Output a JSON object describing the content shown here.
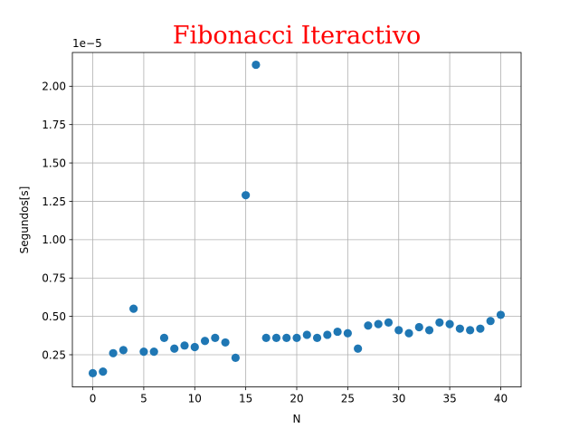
{
  "chart_data": {
    "type": "scatter",
    "title": "Fibonacci Iteractivo",
    "title_color": "#ff0000",
    "xlabel": "N",
    "ylabel": "Segundos[s]",
    "y_offset_label": "1e−5",
    "xlim": [
      -2,
      42
    ],
    "ylim": [
      0.04,
      2.22
    ],
    "x_ticks": [
      0,
      5,
      10,
      15,
      20,
      25,
      30,
      35,
      40
    ],
    "x_tick_labels": [
      "0",
      "5",
      "10",
      "15",
      "20",
      "25",
      "30",
      "35",
      "40"
    ],
    "y_ticks": [
      0.25,
      0.5,
      0.75,
      1.0,
      1.25,
      1.5,
      1.75,
      2.0
    ],
    "y_tick_labels": [
      "0.25",
      "0.50",
      "0.75",
      "1.00",
      "1.25",
      "1.50",
      "1.75",
      "2.00"
    ],
    "grid": true,
    "marker_color": "#1f77b4",
    "series": [
      {
        "x": [
          0,
          1,
          2,
          3,
          4,
          5,
          6,
          7,
          8,
          9,
          10,
          11,
          12,
          13,
          14,
          15,
          16,
          17,
          18,
          19,
          20,
          21,
          22,
          23,
          24,
          25,
          26,
          27,
          28,
          29,
          30,
          31,
          32,
          33,
          34,
          35,
          36,
          37,
          38,
          39,
          40
        ],
        "y": [
          0.13,
          0.14,
          0.26,
          0.28,
          0.55,
          0.27,
          0.27,
          0.36,
          0.29,
          0.31,
          0.3,
          0.34,
          0.36,
          0.33,
          0.23,
          1.29,
          2.14,
          0.36,
          0.36,
          0.36,
          0.36,
          0.38,
          0.36,
          0.38,
          0.4,
          0.39,
          0.29,
          0.44,
          0.45,
          0.46,
          0.41,
          0.39,
          0.43,
          0.41,
          0.46,
          0.45,
          0.42,
          0.41,
          0.42,
          0.47,
          0.51
        ]
      }
    ]
  }
}
